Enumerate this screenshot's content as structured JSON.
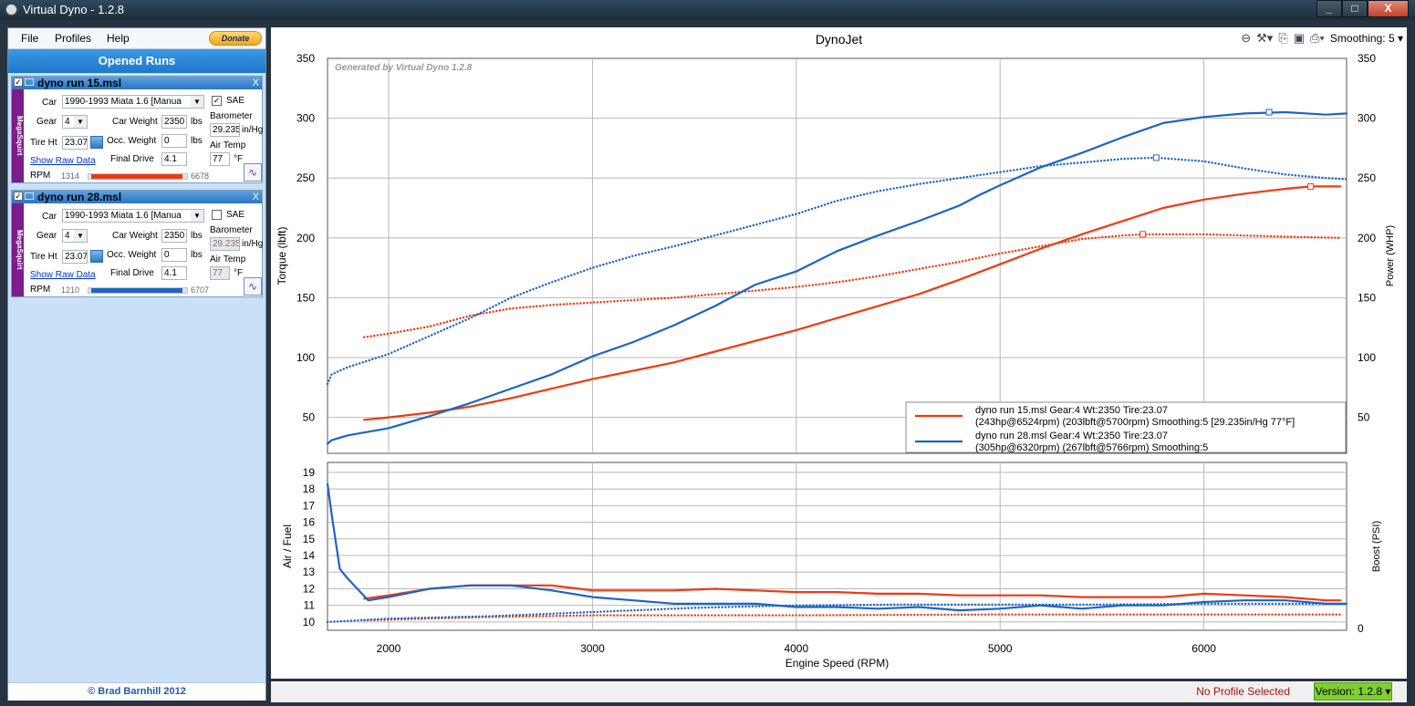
{
  "window": {
    "title": "Virtual Dyno - 1.2.8",
    "buttons": [
      "_",
      "□",
      "X"
    ]
  },
  "menu": {
    "items": [
      "File",
      "Profiles",
      "Help"
    ],
    "donate": "Donate"
  },
  "sidebar": {
    "heading": "Opened Runs",
    "footer": "© Brad Barnhill 2012",
    "runs": [
      {
        "name": "dyno run 15.msl",
        "ecu": "MegaSquirt",
        "checked": "✓",
        "car_label": "Car",
        "car": "1990-1993 Miata 1.6 [Manua",
        "sae_label": "SAE",
        "sae": "✓",
        "gear_label": "Gear",
        "gear": "4",
        "car_weight_label": "Car Weight",
        "car_weight": "2350",
        "lbs1": "lbs",
        "barometer_label": "Barometer",
        "barometer": "29.235",
        "baro_unit": "in/Hg",
        "tire_label": "Tire Ht",
        "tire": "23.07",
        "occ_label": "Occ. Weight",
        "occ_weight": "0",
        "lbs2": "lbs",
        "airtemp_label": "Air Temp",
        "airtemp": "77",
        "temp_unit": "°F",
        "raw_link": "Show Raw Data",
        "fd_label": "Final Drive",
        "final_drive": "4.1",
        "rpm_label": "RPM",
        "rpm_min": "1314",
        "rpm_max": "6678",
        "color": "#ee3a12"
      },
      {
        "name": "dyno run 28.msl",
        "ecu": "MegaSquirt",
        "checked": "✓",
        "car_label": "Car",
        "car": "1990-1993 Miata 1.6 [Manua",
        "sae_label": "SAE",
        "sae": "",
        "gear_label": "Gear",
        "gear": "4",
        "car_weight_label": "Car Weight",
        "car_weight": "2350",
        "lbs1": "lbs",
        "barometer_label": "Barometer",
        "barometer": "29.235",
        "baro_unit": "in/Hg",
        "tire_label": "Tire Ht",
        "tire": "23.07",
        "occ_label": "Occ. Weight",
        "occ_weight": "0",
        "lbs2": "lbs",
        "airtemp_label": "Air Temp",
        "airtemp": "77",
        "temp_unit": "°F",
        "raw_link": "Show Raw Data",
        "fd_label": "Final Drive",
        "final_drive": "4.1",
        "rpm_label": "RPM",
        "rpm_min": "1210",
        "rpm_max": "6707",
        "color": "#1d64c4"
      }
    ]
  },
  "toolbar": {
    "smoothing": "Smoothing: 5",
    "icons": [
      "zoom-out-icon",
      "tools-icon",
      "copy-icon",
      "save-icon",
      "print-icon"
    ]
  },
  "statusbar": {
    "profile": "No Profile Selected",
    "version": "Version: 1.2.8"
  },
  "chart_data": [
    {
      "type": "line",
      "title": "DynoJet",
      "watermark": "Generated by Virtual Dyno 1.2.8",
      "xlabel": "Engine Speed (RPM)",
      "ylabel": "Torque (lbft)",
      "y2label": "Power (WHP)",
      "xlim": [
        1700,
        6700
      ],
      "ylim": [
        20,
        350
      ],
      "xticks": [
        2000,
        3000,
        4000,
        5000,
        6000
      ],
      "yticks": [
        50,
        100,
        150,
        200,
        250,
        300,
        350
      ],
      "grid": true,
      "legend_position": "bottom-right",
      "legend": [
        {
          "line1": "dyno run 15.msl Gear:4 Wt:2350 Tire:23.07",
          "line2": "(243hp@6524rpm) (203lbft@5700rpm) Smoothing:5 [29.235in/Hg 77°F]",
          "color": "#ee3a12"
        },
        {
          "line1": "dyno run 28.msl Gear:4 Wt:2350 Tire:23.07",
          "line2": "(305hp@6320rpm) (267lbft@5766rpm) Smoothing:5",
          "color": "#1d64c4"
        }
      ],
      "series": [
        {
          "name": "dyno run 15.msl",
          "kind": "power",
          "style": "solid",
          "color": "#ee3a12",
          "peak_marker": [
            6524,
            243
          ],
          "points": [
            [
              1880,
              48
            ],
            [
              2000,
              50
            ],
            [
              2200,
              54
            ],
            [
              2400,
              59
            ],
            [
              2600,
              66
            ],
            [
              2800,
              74
            ],
            [
              3000,
              82
            ],
            [
              3200,
              89
            ],
            [
              3400,
              96
            ],
            [
              3600,
              105
            ],
            [
              3800,
              114
            ],
            [
              4000,
              123
            ],
            [
              4200,
              133
            ],
            [
              4400,
              143
            ],
            [
              4600,
              153
            ],
            [
              4800,
              165
            ],
            [
              5000,
              178
            ],
            [
              5200,
              191
            ],
            [
              5400,
              203
            ],
            [
              5600,
              214
            ],
            [
              5800,
              225
            ],
            [
              6000,
              232
            ],
            [
              6200,
              237
            ],
            [
              6400,
              241
            ],
            [
              6524,
              243
            ],
            [
              6670,
              243
            ]
          ]
        },
        {
          "name": "dyno run 15.msl",
          "kind": "torque",
          "style": "dotted",
          "color": "#ee3a12",
          "peak_marker": [
            5700,
            203
          ],
          "points": [
            [
              1880,
              117
            ],
            [
              2000,
              120
            ],
            [
              2200,
              126
            ],
            [
              2400,
              135
            ],
            [
              2600,
              141
            ],
            [
              2800,
              144
            ],
            [
              3000,
              146
            ],
            [
              3200,
              148
            ],
            [
              3400,
              150
            ],
            [
              3600,
              153
            ],
            [
              3800,
              156
            ],
            [
              4000,
              159
            ],
            [
              4200,
              163
            ],
            [
              4400,
              168
            ],
            [
              4600,
              174
            ],
            [
              4800,
              180
            ],
            [
              5000,
              187
            ],
            [
              5200,
              193
            ],
            [
              5400,
              199
            ],
            [
              5600,
              202
            ],
            [
              5700,
              203
            ],
            [
              5800,
              203
            ],
            [
              6000,
              203
            ],
            [
              6200,
              202
            ],
            [
              6400,
              201
            ],
            [
              6670,
              200
            ]
          ]
        },
        {
          "name": "dyno run 28.msl",
          "kind": "power",
          "style": "solid",
          "color": "#1d64c4",
          "peak_marker": [
            6320,
            305
          ],
          "points": [
            [
              1700,
              28
            ],
            [
              1720,
              31
            ],
            [
              1800,
              35
            ],
            [
              2000,
              41
            ],
            [
              2200,
              51
            ],
            [
              2400,
              62
            ],
            [
              2600,
              74
            ],
            [
              2800,
              86
            ],
            [
              3000,
              101
            ],
            [
              3200,
              113
            ],
            [
              3400,
              127
            ],
            [
              3600,
              143
            ],
            [
              3800,
              161
            ],
            [
              4000,
              172
            ],
            [
              4200,
              189
            ],
            [
              4400,
              202
            ],
            [
              4600,
              214
            ],
            [
              4800,
              227
            ],
            [
              4900,
              236
            ],
            [
              5000,
              244
            ],
            [
              5200,
              259
            ],
            [
              5400,
              271
            ],
            [
              5600,
              284
            ],
            [
              5800,
              296
            ],
            [
              6000,
              301
            ],
            [
              6200,
              304
            ],
            [
              6400,
              305
            ],
            [
              6600,
              303
            ],
            [
              6700,
              304
            ]
          ]
        },
        {
          "name": "dyno run 28.msl",
          "kind": "torque",
          "style": "dotted",
          "color": "#1d64c4",
          "peak_marker": [
            5766,
            267
          ],
          "points": [
            [
              1700,
              78
            ],
            [
              1720,
              86
            ],
            [
              1800,
              92
            ],
            [
              2000,
              103
            ],
            [
              2200,
              118
            ],
            [
              2400,
              133
            ],
            [
              2600,
              150
            ],
            [
              2800,
              163
            ],
            [
              3000,
              175
            ],
            [
              3200,
              185
            ],
            [
              3400,
              193
            ],
            [
              3600,
              202
            ],
            [
              3800,
              211
            ],
            [
              4000,
              220
            ],
            [
              4200,
              231
            ],
            [
              4400,
              239
            ],
            [
              4600,
              245
            ],
            [
              4800,
              250
            ],
            [
              5000,
              255
            ],
            [
              5200,
              260
            ],
            [
              5400,
              263
            ],
            [
              5600,
              266
            ],
            [
              5766,
              267
            ],
            [
              6000,
              264
            ],
            [
              6200,
              258
            ],
            [
              6400,
              253
            ],
            [
              6600,
              250
            ],
            [
              6700,
              249
            ]
          ]
        }
      ]
    },
    {
      "type": "line",
      "xlabel": "Engine Speed (RPM)",
      "ylabel": "Air / Fuel",
      "y2label": "Boost (PSI)",
      "xlim": [
        1700,
        6700
      ],
      "ylim": [
        9.5,
        19.6
      ],
      "xticks": [
        2000,
        3000,
        4000,
        5000,
        6000
      ],
      "yticks": [
        10,
        11,
        12,
        13,
        14,
        15,
        16,
        17,
        18,
        19
      ],
      "y2ticks": [
        0
      ],
      "grid": true,
      "series": [
        {
          "name": "dyno run 15.msl",
          "kind": "afr",
          "style": "solid",
          "color": "#ee3a12",
          "points": [
            [
              1880,
              11.4
            ],
            [
              2000,
              11.6
            ],
            [
              2200,
              12.0
            ],
            [
              2400,
              12.2
            ],
            [
              2600,
              12.2
            ],
            [
              2800,
              12.2
            ],
            [
              3000,
              11.9
            ],
            [
              3200,
              11.9
            ],
            [
              3400,
              11.9
            ],
            [
              3600,
              12.0
            ],
            [
              3800,
              11.9
            ],
            [
              4000,
              11.8
            ],
            [
              4200,
              11.8
            ],
            [
              4400,
              11.7
            ],
            [
              4600,
              11.7
            ],
            [
              4800,
              11.6
            ],
            [
              5000,
              11.6
            ],
            [
              5200,
              11.6
            ],
            [
              5400,
              11.5
            ],
            [
              5600,
              11.5
            ],
            [
              5800,
              11.5
            ],
            [
              6000,
              11.7
            ],
            [
              6200,
              11.6
            ],
            [
              6400,
              11.5
            ],
            [
              6600,
              11.3
            ],
            [
              6670,
              11.3
            ]
          ]
        },
        {
          "name": "dyno run 28.msl",
          "kind": "afr",
          "style": "solid",
          "color": "#1d64c4",
          "points": [
            [
              1700,
              18.3
            ],
            [
              1720,
              16.5
            ],
            [
              1760,
              13.2
            ],
            [
              1800,
              12.6
            ],
            [
              1900,
              11.3
            ],
            [
              2000,
              11.5
            ],
            [
              2200,
              12.0
            ],
            [
              2400,
              12.2
            ],
            [
              2600,
              12.2
            ],
            [
              2800,
              11.9
            ],
            [
              3000,
              11.5
            ],
            [
              3200,
              11.3
            ],
            [
              3400,
              11.1
            ],
            [
              3600,
              11.1
            ],
            [
              3800,
              11.1
            ],
            [
              4000,
              10.9
            ],
            [
              4200,
              10.9
            ],
            [
              4400,
              10.8
            ],
            [
              4600,
              10.9
            ],
            [
              4800,
              10.7
            ],
            [
              5000,
              10.8
            ],
            [
              5200,
              11.0
            ],
            [
              5400,
              10.8
            ],
            [
              5600,
              11.0
            ],
            [
              5800,
              11.0
            ],
            [
              6000,
              11.2
            ],
            [
              6200,
              11.3
            ],
            [
              6400,
              11.3
            ],
            [
              6600,
              11.1
            ],
            [
              6700,
              11.1
            ]
          ]
        },
        {
          "name": "dyno run 15.msl",
          "kind": "ref",
          "style": "dotted",
          "color": "#ee3a12",
          "points": [
            [
              1880,
              10.1
            ],
            [
              2500,
              10.3
            ],
            [
              3000,
              10.4
            ],
            [
              4000,
              10.4
            ],
            [
              5000,
              10.45
            ],
            [
              6000,
              10.45
            ],
            [
              6670,
              10.45
            ]
          ]
        },
        {
          "name": "dyno run 28.msl",
          "kind": "ref",
          "style": "dotted",
          "color": "#1d64c4",
          "points": [
            [
              1700,
              10.0
            ],
            [
              2000,
              10.2
            ],
            [
              2500,
              10.35
            ],
            [
              3000,
              10.6
            ],
            [
              3500,
              10.85
            ],
            [
              4000,
              11.0
            ],
            [
              4500,
              11.05
            ],
            [
              5000,
              11.05
            ],
            [
              5500,
              11.05
            ],
            [
              6000,
              11.1
            ],
            [
              6700,
              11.1
            ]
          ]
        }
      ]
    }
  ]
}
